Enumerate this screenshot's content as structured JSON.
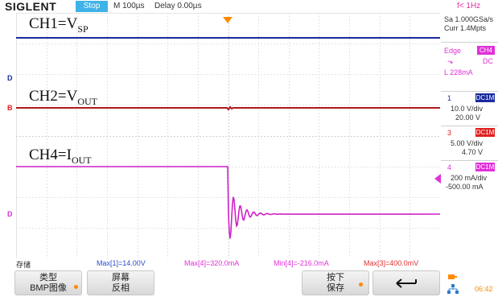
{
  "topbar": {
    "brand": "SIGLENT",
    "run_status": "Stop",
    "timebase": "M 100µs",
    "delay": "Delay 0.00µs",
    "trigger_freq": "f< 1Hz"
  },
  "channel_labels": {
    "ch1": {
      "main": "CH1=V",
      "sub": "SP"
    },
    "ch2": {
      "main": "CH2=V",
      "sub": "OUT"
    },
    "ch4": {
      "main": "CH4=I",
      "sub": "OUT"
    }
  },
  "markers": {
    "ch1": "D",
    "ch2": "B",
    "ch4": "D"
  },
  "right_panel": {
    "sample_rate": "Sa 1.000GSa/s",
    "memory": "Curr 1.4Mpts",
    "trigger_type": "Edge",
    "trigger_source": "CH4",
    "trigger_slope": "⬎",
    "trigger_coupling": "DC",
    "trigger_level": "L  228mA",
    "channels": [
      {
        "num": "1",
        "coupling": "DC1M",
        "scale": "10.0 V/div",
        "offset": "20.00 V",
        "color": "#1a2a9e"
      },
      {
        "num": "3",
        "coupling": "DC1M",
        "scale": "5.00 V/div",
        "offset": "4.70 V",
        "color": "#e02020"
      },
      {
        "num": "4",
        "coupling": "DC1M",
        "scale": "200 mA/div",
        "offset": "-500.00 mA",
        "color": "#e030d8"
      }
    ]
  },
  "measurements": {
    "menu_title": "存储",
    "items": [
      {
        "text": "Max[1]=14.00V",
        "color": "#2b4ad0"
      },
      {
        "text": "Max[4]=320.0mA",
        "color": "#e030d8"
      },
      {
        "text": "Min[4]=-216.0mA",
        "color": "#e030d8"
      },
      {
        "text": "Max[3]=400.0mV",
        "color": "#e03030"
      }
    ]
  },
  "softkeys": {
    "type_label": "类型",
    "type_value": "BMP图像",
    "invert_label": "屏幕",
    "invert_value": "反相",
    "save_label": "按下",
    "save_value": "保存",
    "back_icon": "return-arrow-icon"
  },
  "status": {
    "clock": "06:42"
  },
  "colors": {
    "ch1": "#1a2a9e",
    "ch2": "#b01818",
    "ch4": "#d020c8",
    "trigger": "#ff8a00"
  }
}
